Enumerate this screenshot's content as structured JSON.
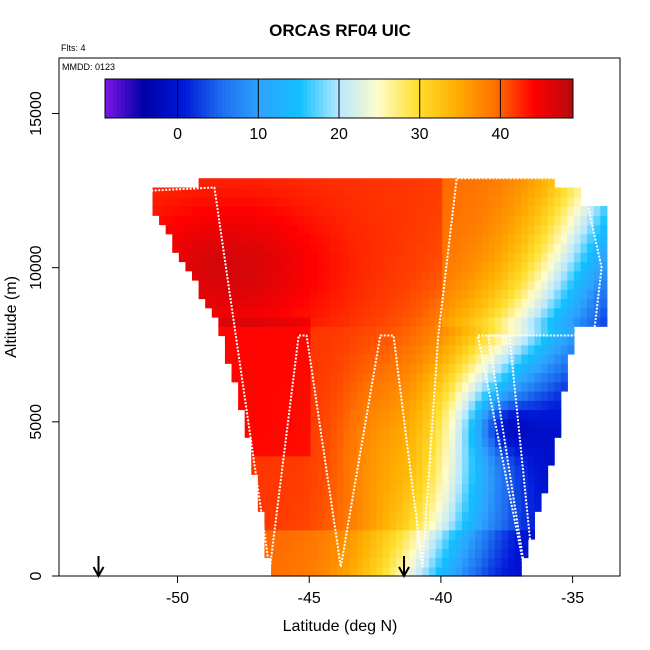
{
  "chart_data": {
    "type": "heatmap",
    "title": "ORCAS RF04 UIC",
    "subtitle_flights": "Flts: 4",
    "subtitle_date": "MMDD: 0123",
    "xlabel": "Latitude (deg N)",
    "ylabel": "Altitude (m)",
    "xlim": [
      -54.5,
      -33.2
    ],
    "ylim": [
      0,
      16800
    ],
    "x_ticks": [
      -50,
      -45,
      -40,
      -35
    ],
    "y_ticks": [
      0,
      5000,
      10000,
      15000
    ],
    "colorbar": {
      "range": [
        -9,
        49
      ],
      "ticks": [
        0,
        10,
        20,
        30,
        40
      ],
      "colors": [
        "#7a16e8",
        "#0000a8",
        "#0018d8",
        "#1e6ef0",
        "#2ea4ff",
        "#12c0ff",
        "#b8e8ff",
        "#fffccc",
        "#ffe030",
        "#ffb000",
        "#ff7000",
        "#ff0000",
        "#b40a10"
      ]
    },
    "field": {
      "lat_min": -51,
      "lat_max": -33.5,
      "alt_bins": [
        0,
        500,
        1000,
        1500,
        2000,
        2500,
        3000,
        3500,
        4000,
        4500,
        5000,
        5500,
        6000,
        6500,
        7000,
        7500,
        8000,
        8500,
        9000,
        9500,
        10000,
        10500,
        11000,
        11500,
        12000,
        12500
      ]
    },
    "flight_track": [
      [
        -51,
        12500
      ],
      [
        -48.6,
        12600
      ],
      [
        -46.5,
        200
      ],
      [
        -45.4,
        7800
      ],
      [
        -45.1,
        7800
      ],
      [
        -43.8,
        300
      ],
      [
        -42.3,
        7800
      ],
      [
        -41.8,
        7800
      ],
      [
        -40.7,
        300
      ],
      [
        -40.1,
        7800
      ],
      [
        -39.4,
        12900
      ],
      [
        -35.7,
        12900
      ],
      [
        -34.6,
        12700
      ],
      [
        -33.9,
        10000
      ],
      [
        -34.2,
        7800
      ],
      [
        -36.7,
        7800
      ],
      [
        -38.2,
        7800
      ],
      [
        -36.8,
        100
      ],
      [
        -38.6,
        7800
      ],
      [
        -37.4,
        7800
      ],
      [
        -36.5,
        200
      ]
    ],
    "markers_lat": [
      -53.0,
      -41.4
    ],
    "legend": "none",
    "grid": false
  }
}
